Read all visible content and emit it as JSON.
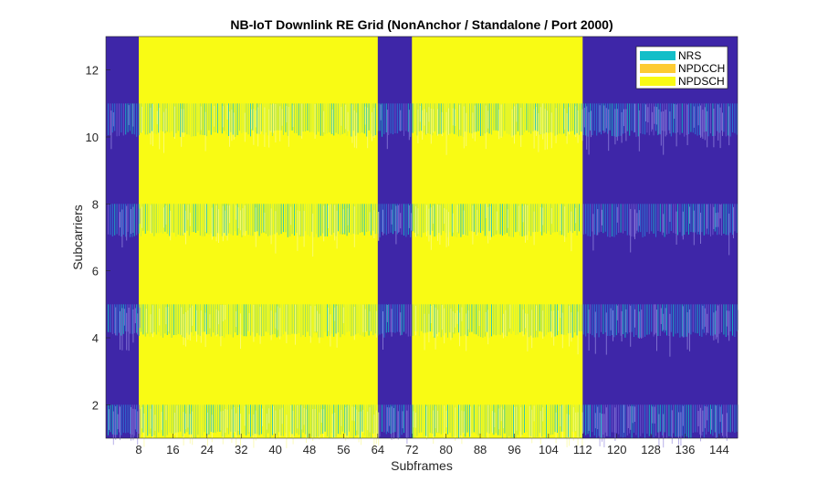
{
  "chart_data": {
    "type": "heatmap",
    "title": "NB-IoT Downlink RE Grid (NonAnchor / Standalone / Port 2000)",
    "xlabel": "Subframes",
    "ylabel": "Subcarriers",
    "xlim": [
      0.3,
      148.3
    ],
    "ylim": [
      1,
      13
    ],
    "xticks": [
      8,
      16,
      24,
      32,
      40,
      48,
      56,
      64,
      72,
      80,
      88,
      96,
      104,
      112,
      120,
      128,
      136,
      144
    ],
    "yticks": [
      2,
      4,
      6,
      8,
      10,
      12
    ],
    "background_color": "#3e26a8",
    "legend": {
      "placement": "top-right",
      "entries": [
        {
          "label": "NRS",
          "color": "#13bec8"
        },
        {
          "label": "NPDCCH",
          "color": "#fdcb32"
        },
        {
          "label": "NPDSCH",
          "color": "#f9fb14"
        }
      ]
    },
    "npdsch_subframe_ranges": [
      [
        8,
        64
      ],
      [
        72,
        112
      ]
    ],
    "nrs_subcarrier_bands": [
      [
        1,
        2
      ],
      [
        4,
        5
      ],
      [
        7,
        8
      ],
      [
        10,
        11
      ]
    ]
  }
}
